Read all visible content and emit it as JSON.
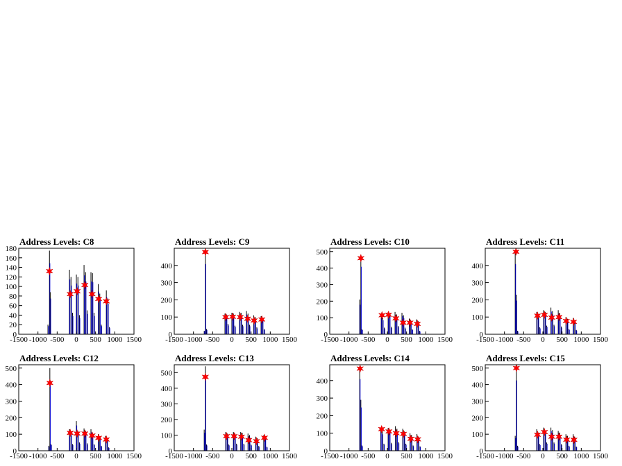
{
  "charts": [
    {
      "title": "Address Levels: C8",
      "x_ticks": [
        "-1500",
        "-1000",
        "-500",
        "0",
        "500",
        "1000",
        "1500"
      ],
      "y_ticks": [
        "0",
        "20",
        "40",
        "60",
        "80",
        "100",
        "120",
        "140",
        "160",
        "180"
      ],
      "ylim": [
        0,
        180
      ],
      "xlim": [
        -1500,
        1500
      ],
      "chart_data": {
        "type": "bar",
        "bars": [
          [
            -740,
            0,
            20
          ],
          [
            -700,
            0,
            175
          ],
          [
            -680,
            0,
            88
          ],
          [
            -180,
            0,
            135
          ],
          [
            -140,
            0,
            120
          ],
          [
            -100,
            0,
            45
          ],
          [
            0,
            0,
            125
          ],
          [
            40,
            0,
            120
          ],
          [
            80,
            0,
            40
          ],
          [
            200,
            0,
            145
          ],
          [
            240,
            0,
            130
          ],
          [
            280,
            0,
            50
          ],
          [
            380,
            0,
            130
          ],
          [
            420,
            0,
            128
          ],
          [
            460,
            0,
            45
          ],
          [
            570,
            0,
            105
          ],
          [
            610,
            0,
            85
          ],
          [
            650,
            0,
            20
          ],
          [
            780,
            0,
            92
          ],
          [
            820,
            0,
            75
          ],
          [
            860,
            0,
            15
          ]
        ],
        "markers": [
          [
            -700,
            132
          ],
          [
            -160,
            84
          ],
          [
            20,
            90
          ],
          [
            220,
            103
          ],
          [
            410,
            84
          ],
          [
            580,
            74
          ],
          [
            780,
            69
          ]
        ]
      }
    },
    {
      "title": "Address Levels: C9",
      "x_ticks": [
        "-1500",
        "-1000",
        "-500",
        "0",
        "500",
        "1000",
        "1500"
      ],
      "y_ticks": [
        "0",
        "100",
        "200",
        "300",
        "400"
      ],
      "ylim": [
        0,
        500
      ],
      "xlim": [
        -1500,
        1500
      ],
      "chart_data": {
        "type": "bar",
        "bars": [
          [
            -720,
            0,
            20
          ],
          [
            -690,
            0,
            480
          ],
          [
            -660,
            0,
            30
          ],
          [
            -180,
            0,
            120
          ],
          [
            -140,
            0,
            115
          ],
          [
            -100,
            0,
            60
          ],
          [
            0,
            0,
            125
          ],
          [
            40,
            0,
            120
          ],
          [
            80,
            0,
            50
          ],
          [
            200,
            0,
            130
          ],
          [
            240,
            0,
            125
          ],
          [
            280,
            0,
            55
          ],
          [
            380,
            0,
            135
          ],
          [
            420,
            0,
            120
          ],
          [
            460,
            0,
            55
          ],
          [
            570,
            0,
            110
          ],
          [
            610,
            0,
            100
          ],
          [
            650,
            0,
            40
          ],
          [
            760,
            0,
            105
          ],
          [
            800,
            0,
            90
          ],
          [
            840,
            0,
            30
          ]
        ],
        "markers": [
          [
            -690,
            478
          ],
          [
            -160,
            100
          ],
          [
            20,
            102
          ],
          [
            220,
            100
          ],
          [
            410,
            90
          ],
          [
            580,
            80
          ],
          [
            780,
            86
          ]
        ]
      }
    },
    {
      "title": "Address Levels: C10",
      "x_ticks": [
        "-1500",
        "-1000",
        "-500",
        "0",
        "500",
        "1000",
        "1500"
      ],
      "y_ticks": [
        "0",
        "100",
        "200",
        "300",
        "400",
        "500"
      ],
      "ylim": [
        0,
        520
      ],
      "xlim": [
        -1500,
        1500
      ],
      "chart_data": {
        "type": "bar",
        "bars": [
          [
            -720,
            0,
            210
          ],
          [
            -690,
            0,
            480
          ],
          [
            -660,
            0,
            30
          ],
          [
            -160,
            0,
            120
          ],
          [
            -120,
            0,
            100
          ],
          [
            -80,
            0,
            40
          ],
          [
            20,
            0,
            135
          ],
          [
            60,
            0,
            125
          ],
          [
            100,
            0,
            45
          ],
          [
            200,
            0,
            135
          ],
          [
            240,
            0,
            120
          ],
          [
            280,
            0,
            50
          ],
          [
            380,
            0,
            130
          ],
          [
            420,
            0,
            115
          ],
          [
            460,
            0,
            40
          ],
          [
            570,
            0,
            95
          ],
          [
            610,
            0,
            85
          ],
          [
            650,
            0,
            30
          ],
          [
            760,
            0,
            90
          ],
          [
            800,
            0,
            80
          ],
          [
            840,
            0,
            20
          ]
        ],
        "markers": [
          [
            -690,
            460
          ],
          [
            -140,
            115
          ],
          [
            30,
            118
          ],
          [
            220,
            96
          ],
          [
            410,
            70
          ],
          [
            590,
            70
          ],
          [
            780,
            63
          ]
        ]
      }
    },
    {
      "title": "Address Levels: C11",
      "x_ticks": [
        "-1500",
        "-1000",
        "-500",
        "0",
        "500",
        "1000",
        "1500"
      ],
      "y_ticks": [
        "0",
        "100",
        "200",
        "300",
        "400"
      ],
      "ylim": [
        0,
        500
      ],
      "xlim": [
        -1500,
        1500
      ],
      "chart_data": {
        "type": "bar",
        "bars": [
          [
            -720,
            0,
            480
          ],
          [
            -690,
            0,
            230
          ],
          [
            -660,
            0,
            20
          ],
          [
            -160,
            0,
            130
          ],
          [
            -120,
            0,
            110
          ],
          [
            -80,
            0,
            40
          ],
          [
            20,
            0,
            140
          ],
          [
            60,
            0,
            130
          ],
          [
            100,
            0,
            50
          ],
          [
            210,
            0,
            155
          ],
          [
            250,
            0,
            135
          ],
          [
            290,
            0,
            55
          ],
          [
            400,
            0,
            140
          ],
          [
            440,
            0,
            125
          ],
          [
            480,
            0,
            45
          ],
          [
            600,
            0,
            100
          ],
          [
            640,
            0,
            90
          ],
          [
            680,
            0,
            30
          ],
          [
            790,
            0,
            95
          ],
          [
            830,
            0,
            80
          ],
          [
            870,
            0,
            25
          ]
        ],
        "markers": [
          [
            -700,
            480
          ],
          [
            -140,
            108
          ],
          [
            40,
            113
          ],
          [
            230,
            97
          ],
          [
            420,
            100
          ],
          [
            610,
            77
          ],
          [
            800,
            72
          ]
        ]
      }
    },
    {
      "title": "Address Levels: C12",
      "x_ticks": [
        "-1500",
        "-1000",
        "-500",
        "0",
        "500",
        "1000",
        "1500"
      ],
      "y_ticks": [
        "0",
        "100",
        "200",
        "300",
        "400",
        "500"
      ],
      "ylim": [
        0,
        520
      ],
      "xlim": [
        -1500,
        1500
      ],
      "chart_data": {
        "type": "bar",
        "bars": [
          [
            -720,
            0,
            30
          ],
          [
            -690,
            0,
            500
          ],
          [
            -660,
            0,
            40
          ],
          [
            -180,
            0,
            130
          ],
          [
            -140,
            0,
            110
          ],
          [
            -100,
            0,
            40
          ],
          [
            0,
            0,
            180
          ],
          [
            40,
            0,
            120
          ],
          [
            80,
            0,
            50
          ],
          [
            200,
            0,
            135
          ],
          [
            240,
            0,
            120
          ],
          [
            280,
            0,
            45
          ],
          [
            380,
            0,
            130
          ],
          [
            420,
            0,
            110
          ],
          [
            460,
            0,
            40
          ],
          [
            570,
            0,
            100
          ],
          [
            610,
            0,
            85
          ],
          [
            650,
            0,
            30
          ],
          [
            760,
            0,
            90
          ],
          [
            800,
            0,
            75
          ],
          [
            840,
            0,
            20
          ]
        ],
        "markers": [
          [
            -690,
            410
          ],
          [
            -160,
            108
          ],
          [
            20,
            104
          ],
          [
            220,
            104
          ],
          [
            410,
            92
          ],
          [
            580,
            78
          ],
          [
            780,
            68
          ]
        ]
      }
    },
    {
      "title": "Address Levels: C13",
      "x_ticks": [
        "-1500",
        "-1000",
        "-500",
        "0",
        "500",
        "1000",
        "1500"
      ],
      "y_ticks": [
        "0",
        "100",
        "200",
        "300",
        "400",
        "500"
      ],
      "ylim": [
        0,
        550
      ],
      "xlim": [
        -1500,
        1500
      ],
      "chart_data": {
        "type": "bar",
        "bars": [
          [
            -720,
            0,
            135
          ],
          [
            -690,
            0,
            540
          ],
          [
            -660,
            0,
            40
          ],
          [
            -160,
            0,
            120
          ],
          [
            -120,
            0,
            110
          ],
          [
            -80,
            0,
            40
          ],
          [
            40,
            0,
            120
          ],
          [
            80,
            0,
            110
          ],
          [
            120,
            0,
            45
          ],
          [
            230,
            0,
            120
          ],
          [
            270,
            0,
            115
          ],
          [
            310,
            0,
            45
          ],
          [
            420,
            0,
            110
          ],
          [
            460,
            0,
            100
          ],
          [
            500,
            0,
            40
          ],
          [
            620,
            0,
            90
          ],
          [
            660,
            0,
            80
          ],
          [
            700,
            0,
            30
          ],
          [
            830,
            0,
            100
          ],
          [
            870,
            0,
            85
          ],
          [
            910,
            0,
            25
          ]
        ],
        "markers": [
          [
            -690,
            472
          ],
          [
            -140,
            93
          ],
          [
            60,
            93
          ],
          [
            250,
            90
          ],
          [
            440,
            68
          ],
          [
            640,
            61
          ],
          [
            850,
            83
          ]
        ]
      }
    },
    {
      "title": "Address Levels: C14",
      "x_ticks": [
        "-1500",
        "-1000",
        "-500",
        "0",
        "500",
        "1000",
        "1500"
      ],
      "y_ticks": [
        "0",
        "100",
        "200",
        "300",
        "400"
      ],
      "ylim": [
        0,
        490
      ],
      "xlim": [
        -1500,
        1500
      ],
      "chart_data": {
        "type": "bar",
        "bars": [
          [
            -720,
            0,
            480
          ],
          [
            -690,
            0,
            290
          ],
          [
            -660,
            0,
            30
          ],
          [
            -170,
            0,
            130
          ],
          [
            -130,
            0,
            110
          ],
          [
            -90,
            0,
            40
          ],
          [
            20,
            0,
            130
          ],
          [
            60,
            0,
            120
          ],
          [
            100,
            0,
            45
          ],
          [
            210,
            0,
            140
          ],
          [
            250,
            0,
            125
          ],
          [
            290,
            0,
            50
          ],
          [
            400,
            0,
            125
          ],
          [
            440,
            0,
            110
          ],
          [
            480,
            0,
            40
          ],
          [
            590,
            0,
            100
          ],
          [
            630,
            0,
            90
          ],
          [
            670,
            0,
            30
          ],
          [
            770,
            0,
            95
          ],
          [
            810,
            0,
            80
          ],
          [
            850,
            0,
            25
          ]
        ],
        "markers": [
          [
            -710,
            468
          ],
          [
            -150,
            123
          ],
          [
            40,
            110
          ],
          [
            230,
            100
          ],
          [
            420,
            96
          ],
          [
            610,
            68
          ],
          [
            790,
            65
          ]
        ]
      }
    },
    {
      "title": "Address Levels: C15",
      "x_ticks": [
        "-1500",
        "-1000",
        "-500",
        "0",
        "500",
        "1000",
        "1500"
      ],
      "y_ticks": [
        "0",
        "100",
        "200",
        "300",
        "400",
        "500"
      ],
      "ylim": [
        0,
        520
      ],
      "xlim": [
        -1500,
        1500
      ],
      "chart_data": {
        "type": "bar",
        "bars": [
          [
            -720,
            0,
            90
          ],
          [
            -690,
            0,
            500
          ],
          [
            -660,
            0,
            30
          ],
          [
            -160,
            0,
            130
          ],
          [
            -120,
            0,
            110
          ],
          [
            -80,
            0,
            40
          ],
          [
            20,
            0,
            140
          ],
          [
            60,
            0,
            120
          ],
          [
            100,
            0,
            50
          ],
          [
            210,
            0,
            140
          ],
          [
            250,
            0,
            125
          ],
          [
            290,
            0,
            50
          ],
          [
            400,
            0,
            120
          ],
          [
            440,
            0,
            110
          ],
          [
            480,
            0,
            40
          ],
          [
            600,
            0,
            100
          ],
          [
            640,
            0,
            90
          ],
          [
            680,
            0,
            30
          ],
          [
            790,
            0,
            100
          ],
          [
            830,
            0,
            85
          ],
          [
            870,
            0,
            25
          ]
        ],
        "markers": [
          [
            -690,
            500
          ],
          [
            -140,
            97
          ],
          [
            40,
            113
          ],
          [
            230,
            85
          ],
          [
            420,
            85
          ],
          [
            620,
            67
          ],
          [
            810,
            66
          ]
        ]
      }
    }
  ]
}
